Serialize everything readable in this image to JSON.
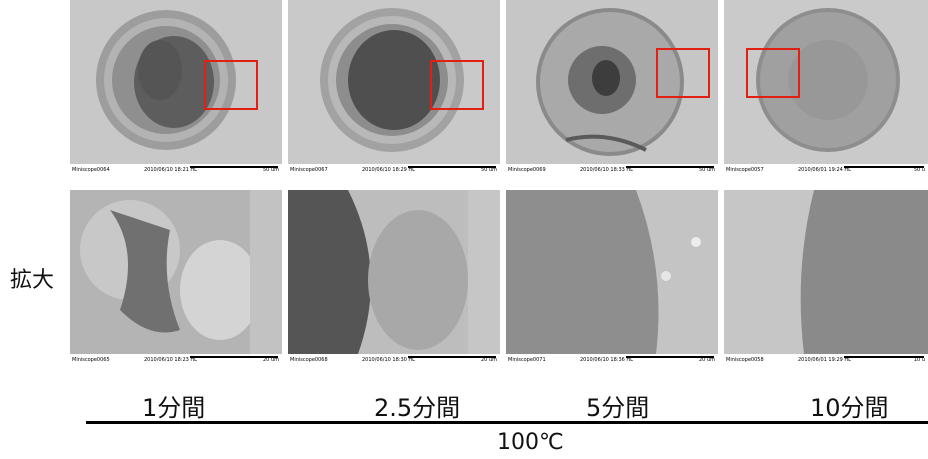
{
  "row_label": "拡大",
  "temperature": "100℃",
  "conditions": [
    "1分間",
    "2.5分間",
    "5分間",
    "10分間"
  ],
  "panels": {
    "overview": [
      {
        "file": "Miniscope0064",
        "date": "2010/06/10  18:21  HL",
        "scale": "50 um"
      },
      {
        "file": "Miniscope0067",
        "date": "2010/06/10  18:29  HL",
        "scale": "50 um"
      },
      {
        "file": "Miniscope0069",
        "date": "2010/06/10  18:33  HL",
        "scale": "50 um"
      },
      {
        "file": "Miniscope0057",
        "date": "2010/06/01  19:24  HL",
        "scale": "50 u"
      }
    ],
    "zoom": [
      {
        "file": "Miniscope0065",
        "date": "2010/06/10  18:23  HL",
        "scale": "20 um"
      },
      {
        "file": "Miniscope0068",
        "date": "2010/06/10  18:30  HL",
        "scale": "20 um"
      },
      {
        "file": "Miniscope0071",
        "date": "2010/06/10  18:36  HL",
        "scale": "20 um"
      },
      {
        "file": "Miniscope0058",
        "date": "2010/06/01  19:29  HL",
        "scale": "10 u"
      }
    ]
  },
  "colors": {
    "highlight_box": "#e02010",
    "sem_background": "#c9c9c9"
  }
}
